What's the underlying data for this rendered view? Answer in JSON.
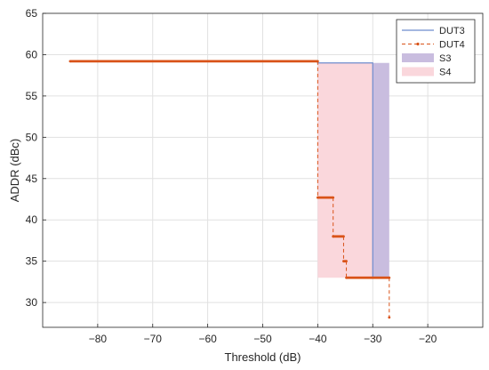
{
  "chart_data": {
    "type": "line",
    "title": "",
    "xlabel": "Threshold (dB)",
    "ylabel": "ADDR (dBc)",
    "xlim": [
      -90,
      -10
    ],
    "ylim": [
      27,
      65
    ],
    "xticks": [
      -80,
      -70,
      -60,
      -50,
      -40,
      -30,
      -20
    ],
    "yticks": [
      30,
      35,
      40,
      45,
      50,
      55,
      60,
      65
    ],
    "xtick_labels": [
      "−80",
      "−70",
      "−60",
      "−50",
      "−40",
      "−30",
      "−20"
    ],
    "ytick_labels": [
      "30",
      "35",
      "40",
      "45",
      "50",
      "55",
      "60",
      "65"
    ],
    "grid": true,
    "legend_position": "top-right",
    "series": [
      {
        "name": "DUT3",
        "kind": "line",
        "color": "#6e8ccd",
        "x": [
          -85,
          -40,
          -40,
          -30,
          -30,
          -27
        ],
        "y": [
          59.2,
          59.2,
          59.0,
          59.0,
          33.0,
          33.0
        ]
      },
      {
        "name": "DUT4",
        "kind": "dashed-line-markers",
        "color": "#d95319",
        "x": [
          -85,
          -40,
          -40,
          -37.2,
          -37.2,
          -35.3,
          -35.3,
          -34.8,
          -34.8,
          -27,
          -27
        ],
        "y": [
          59.2,
          59.2,
          42.7,
          42.7,
          38.0,
          38.0,
          35.0,
          35.0,
          33.0,
          33.0,
          28.2
        ]
      },
      {
        "name": "S3",
        "kind": "area",
        "color": "#c9bddf",
        "x": [
          -30,
          -27
        ],
        "y": [
          59.0,
          33.0
        ]
      },
      {
        "name": "S4",
        "kind": "area",
        "color": "#fad7dc",
        "x": [
          -40,
          -30
        ],
        "y": [
          59.0,
          33.0
        ]
      }
    ]
  }
}
